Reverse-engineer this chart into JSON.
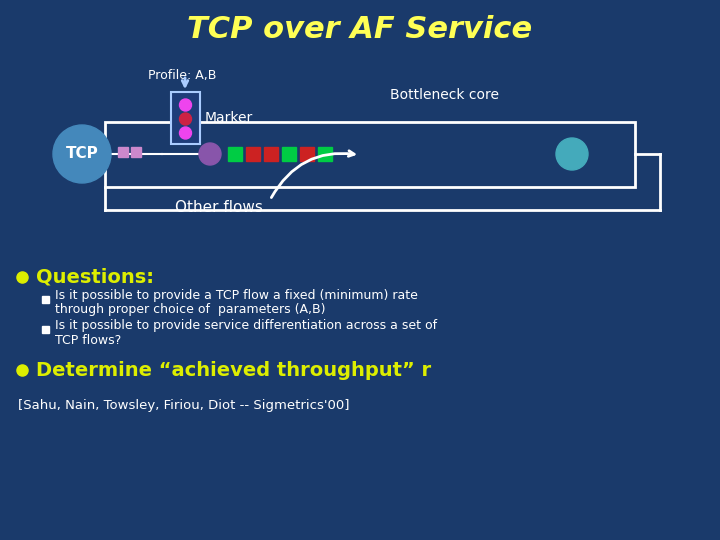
{
  "bg_color": "#1a3a6b",
  "title": "TCP over AF Service",
  "title_color": "#ffff55",
  "title_fontsize": 22,
  "profile_label": "Profile: A,B",
  "marker_label": "Marker",
  "bottleneck_label": "Bottleneck core",
  "tcp_label": "TCP",
  "other_flows_label": "Other flows",
  "questions_label": "Questions:",
  "bullet1_line1": "Is it possible to provide a TCP flow a fixed (minimum) rate",
  "bullet1_line2": "through proper choice of  parameters (A,B)",
  "bullet2_line1": "Is it possible to provide service differentiation across a set of",
  "bullet2_line2": "TCP flows?",
  "determine_label": "Determine “achieved throughput” r",
  "citation": "[Sahu, Nain, Towsley, Firiou, Diot -- Sigmetrics'00]",
  "white_color": "#ffffff",
  "yellow_color": "#ffff55",
  "text_color": "#ffffff",
  "tcp_circle_color": "#4488bb",
  "output_circle_color": "#44aabb",
  "marker_box_facecolor": "#1e3d7a",
  "green_sq": "#00cc44",
  "red_sq": "#cc2222",
  "pink_sq": "#cc88cc",
  "purple_circle": "#8855aa",
  "arrow_color": "#ffffff",
  "bullet_yellow": "#ddee00",
  "sub_bullet_white": "#ffffff",
  "marker_dot1": "#ee44ee",
  "marker_dot2": "#cc2244",
  "marker_dot3": "#ee44ee"
}
